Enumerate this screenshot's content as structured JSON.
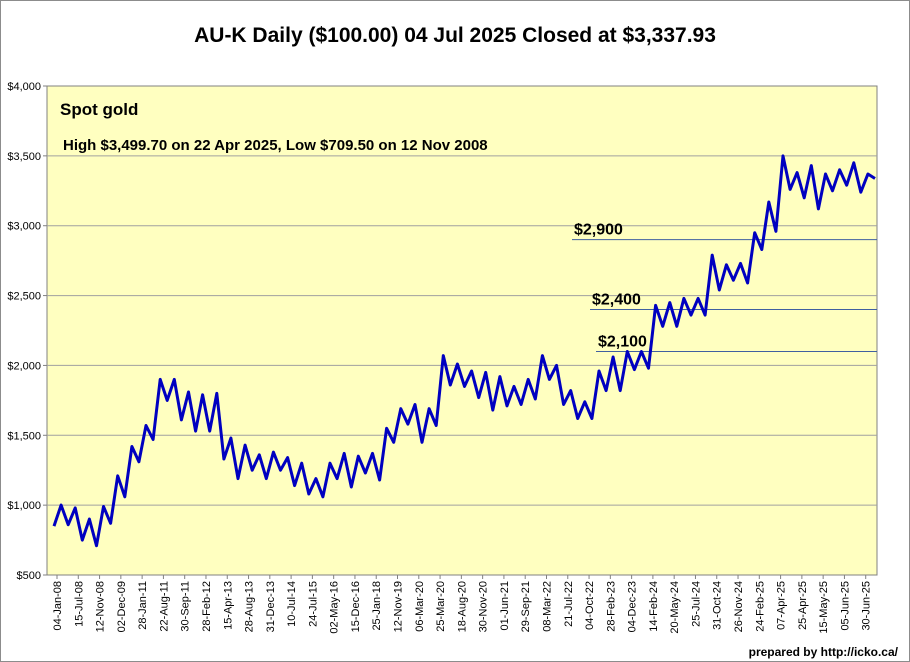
{
  "chart_data": {
    "type": "line",
    "title": "AU-K Daily ($100.00)  04 Jul 2025 Closed at $3,337.93",
    "subtitle": "Spot gold",
    "annotation": "High $3,499.70 on 22 Apr 2025, Low $709.50 on 12 Nov 2008",
    "xlabel": "",
    "ylabel": "",
    "ylim": [
      500,
      4000
    ],
    "yticks": [
      500,
      1000,
      1500,
      2000,
      2500,
      3000,
      3500,
      4000
    ],
    "ytick_labels": [
      "$500",
      "$1,000",
      "$1,500",
      "$2,000",
      "$2,500",
      "$3,000",
      "$3,500",
      "$4,000"
    ],
    "x_tick_labels": [
      "04-Jan-08",
      "15-Jul-08",
      "12-Nov-08",
      "02-Dec-09",
      "28-Jan-11",
      "22-Aug-11",
      "30-Sep-11",
      "28-Feb-12",
      "15-Apr-13",
      "28-Aug-13",
      "31-Dec-13",
      "10-Jul-14",
      "24-Jul-15",
      "02-May-16",
      "15-Dec-16",
      "25-Jan-18",
      "12-Nov-19",
      "06-Mar-20",
      "25-Mar-20",
      "18-Aug-20",
      "30-Nov-20",
      "01-Jun-21",
      "29-Sep-21",
      "08-Mar-22",
      "21-Jul-22",
      "04-Oct-22",
      "28-Feb-23",
      "04-Dec-23",
      "14-Feb-24",
      "20-May-24",
      "25-Jul-24",
      "31-Oct-24",
      "26-Nov-24",
      "24-Feb-25",
      "07-Apr-25",
      "25-Apr-25",
      "15-May-25",
      "05-Jun-25",
      "30-Jun-25"
    ],
    "reference_lines": [
      {
        "value": 2900,
        "label": "$2,900"
      },
      {
        "value": 2400,
        "label": "$2,400"
      },
      {
        "value": 2100,
        "label": "$2,100"
      }
    ],
    "grid": true,
    "series": [
      {
        "color": "#0000c0",
        "values": [
          850,
          1000,
          860,
          980,
          750,
          900,
          710,
          990,
          870,
          1210,
          1060,
          1420,
          1310,
          1570,
          1470,
          1900,
          1750,
          1900,
          1610,
          1810,
          1530,
          1790,
          1530,
          1800,
          1330,
          1480,
          1190,
          1430,
          1250,
          1360,
          1190,
          1380,
          1250,
          1340,
          1140,
          1300,
          1080,
          1190,
          1060,
          1300,
          1190,
          1370,
          1130,
          1350,
          1230,
          1370,
          1180,
          1550,
          1450,
          1690,
          1580,
          1720,
          1450,
          1690,
          1570,
          2070,
          1860,
          2010,
          1850,
          1960,
          1770,
          1950,
          1680,
          1920,
          1710,
          1850,
          1720,
          1900,
          1760,
          2070,
          1900,
          2000,
          1720,
          1820,
          1620,
          1740,
          1620,
          1960,
          1820,
          2060,
          1820,
          2100,
          1970,
          2100,
          1980,
          2430,
          2280,
          2450,
          2280,
          2480,
          2360,
          2480,
          2360,
          2790,
          2540,
          2720,
          2610,
          2730,
          2590,
          2950,
          2830,
          3170,
          2960,
          3500,
          3260,
          3380,
          3200,
          3430,
          3120,
          3370,
          3250,
          3400,
          3290,
          3450,
          3240,
          3370,
          3338
        ]
      }
    ]
  },
  "footer": {
    "credit": "prepared by http://icko.ca/"
  }
}
